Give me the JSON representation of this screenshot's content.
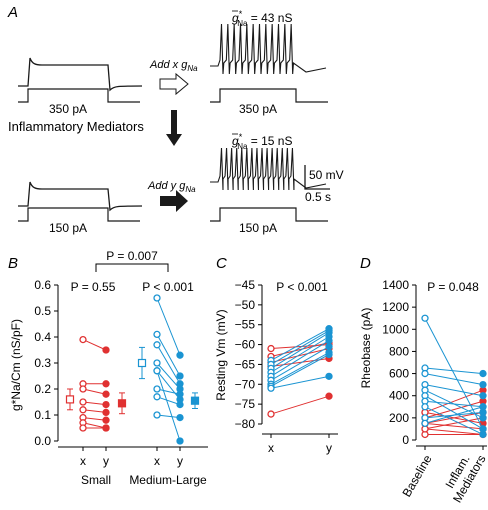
{
  "colors": {
    "red": "#e03131",
    "blue": "#1a94d2",
    "trace": "#1a1a1a",
    "axis": "#000000"
  },
  "panelA": {
    "letter": "A",
    "gna_top": "= 43 nS",
    "gna_bottom": "= 15 nS",
    "current_top": "350 pA",
    "current_bottom": "150 pA",
    "add_x": "Add x",
    "add_y": "Add y",
    "mediators": "Inflammatory Mediators",
    "scale_v": "50 mV",
    "scale_t": "0.5 s",
    "g_symbol": "g",
    "g_sub": "Na",
    "g_star": "*",
    "spikes_top": 12,
    "spikes_bottom": 15
  },
  "chart_data": [
    {
      "panel": "B",
      "type": "scatter",
      "ylabel": "g*Na/Cm (nS/pF)",
      "ylim": [
        0,
        0.6
      ],
      "yticks": [
        "0.0",
        "0.1",
        "0.2",
        "0.3",
        "0.4",
        "0.5",
        "0.6"
      ],
      "xticks": [
        "x",
        "y",
        "x",
        "y"
      ],
      "groups": [
        "Small",
        "Medium-Large"
      ],
      "p_small": "P = 0.55",
      "p_large": "P < 0.001",
      "p_between": "P = 0.007",
      "small_pairs": [
        [
          0.39,
          0.35
        ],
        [
          0.22,
          0.22
        ],
        [
          0.2,
          0.18
        ],
        [
          0.15,
          0.14
        ],
        [
          0.12,
          0.11
        ],
        [
          0.09,
          0.08
        ],
        [
          0.07,
          0.05
        ],
        [
          0.05,
          0.05
        ]
      ],
      "large_pairs": [
        [
          0.55,
          0.33
        ],
        [
          0.41,
          0.25
        ],
        [
          0.37,
          0.22
        ],
        [
          0.3,
          0.2
        ],
        [
          0.27,
          0.16
        ],
        [
          0.2,
          0.18
        ],
        [
          0.17,
          0.14
        ],
        [
          0.1,
          0.09
        ],
        [
          0.27,
          0.0
        ]
      ],
      "small_summary": {
        "x": {
          "mean": 0.16,
          "err": 0.04
        },
        "y": {
          "mean": 0.145,
          "err": 0.04
        }
      },
      "large_summary": {
        "x": {
          "mean": 0.3,
          "err": 0.06
        },
        "y": {
          "mean": 0.155,
          "err": 0.03
        }
      }
    },
    {
      "panel": "C",
      "type": "scatter",
      "ylabel": "Resting Vm (mV)",
      "ylim": [
        -80,
        -45
      ],
      "yticks": [
        "-45",
        "-50",
        "-55",
        "-60",
        "-65",
        "-70",
        "-75",
        "-80"
      ],
      "xticks": [
        "x",
        "y"
      ],
      "p_text": "P < 0.001",
      "red_pairs": [
        [
          -61,
          -60
        ],
        [
          -63,
          -59.5
        ],
        [
          -64.5,
          -61
        ],
        [
          -65.5,
          -63.5
        ],
        [
          -77.5,
          -73
        ]
      ],
      "blue_pairs": [
        [
          -64,
          -56
        ],
        [
          -65,
          -56.5
        ],
        [
          -66,
          -57
        ],
        [
          -67,
          -58
        ],
        [
          -68,
          -59
        ],
        [
          -69,
          -60.5
        ],
        [
          -70,
          -62
        ],
        [
          -70.5,
          -62.5
        ],
        [
          -71,
          -68
        ]
      ]
    },
    {
      "panel": "D",
      "type": "scatter",
      "ylabel": "Rheobase (pA)",
      "ylim": [
        0,
        1400
      ],
      "yticks": [
        "0",
        "200",
        "400",
        "600",
        "800",
        "1000",
        "1200",
        "1400"
      ],
      "xticks": [
        "Baseline",
        "Inflam.",
        "Mediators"
      ],
      "p_text": "P = 0.048",
      "red_pairs": [
        [
          250,
          450
        ],
        [
          200,
          350
        ],
        [
          150,
          250
        ],
        [
          100,
          200
        ],
        [
          250,
          150
        ],
        [
          150,
          100
        ],
        [
          50,
          50
        ],
        [
          100,
          50
        ]
      ],
      "blue_pairs": [
        [
          1100,
          100
        ],
        [
          650,
          600
        ],
        [
          600,
          500
        ],
        [
          500,
          400
        ],
        [
          450,
          200
        ],
        [
          400,
          100
        ],
        [
          350,
          300
        ],
        [
          300,
          50
        ],
        [
          200,
          250
        ],
        [
          150,
          300
        ]
      ]
    }
  ]
}
